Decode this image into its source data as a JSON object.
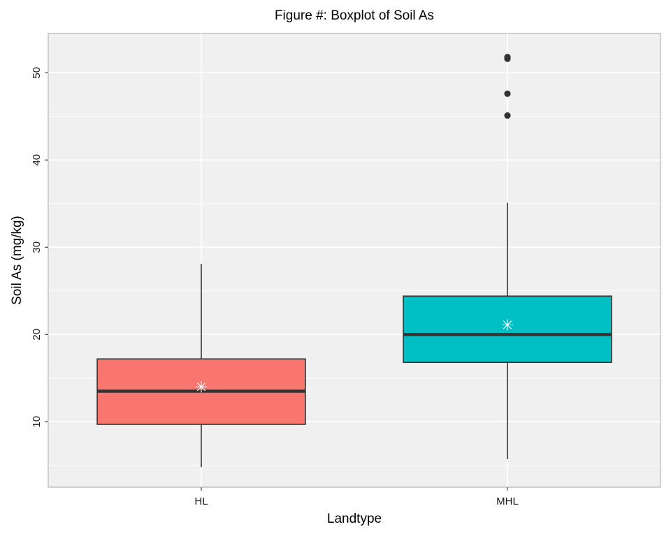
{
  "chart_data": {
    "type": "boxplot",
    "title": "Figure #: Boxplot of  Soil As",
    "xlabel": "Landtype",
    "ylabel": "Soil As (mg/kg)",
    "ylim": [
      2.5,
      54.5
    ],
    "yticks": [
      10,
      20,
      30,
      40,
      50
    ],
    "grid": true,
    "legend": "none",
    "categories": [
      "HL",
      "MHL"
    ],
    "boxes": [
      {
        "category": "HL",
        "whisker_low": 4.8,
        "q1": 9.7,
        "median": 13.5,
        "q3": 17.2,
        "whisker_high": 28.1,
        "mean": 14.0,
        "outliers": [],
        "color": "#F8766D"
      },
      {
        "category": "MHL",
        "whisker_low": 5.7,
        "q1": 16.8,
        "median": 20.0,
        "q3": 24.4,
        "whisker_high": 35.1,
        "mean": 21.1,
        "outliers": [
          45.1,
          47.6,
          51.6,
          51.8
        ],
        "color": "#00BFC4"
      }
    ]
  }
}
